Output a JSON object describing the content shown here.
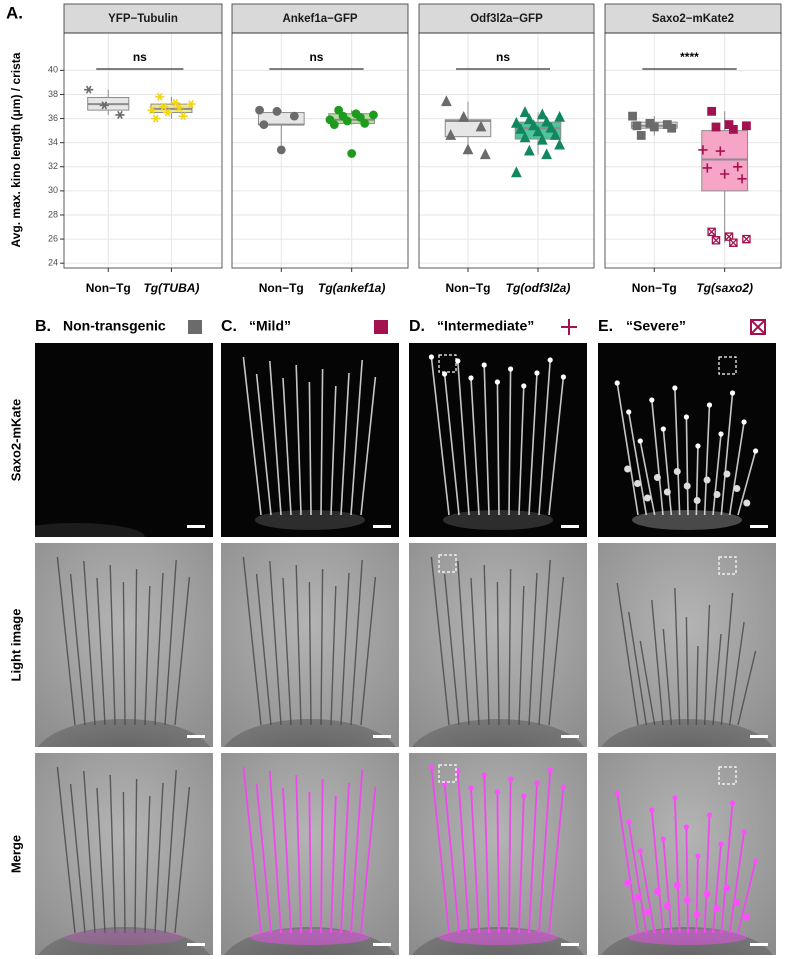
{
  "chart_data": {
    "type": "box",
    "panel_label": "A.",
    "ylabel": "Avg. max. kino length (μm) / crista",
    "ylim": [
      23.6,
      43.1
    ],
    "yticks": [
      24,
      26,
      28,
      30,
      32,
      34,
      36,
      38,
      40
    ],
    "grid": true,
    "facets": [
      {
        "title": "YFP−Tubulin",
        "significance": "ns",
        "groups": [
          {
            "label": "Non−Tg",
            "italic": false,
            "color": "#6b6b6b",
            "fill": "#e6e6e6",
            "median": 37.2,
            "q1": 36.7,
            "q3": 37.75,
            "whisker_low": 36.3,
            "whisker_high": 38.4,
            "marker": "asterisk",
            "points": [
              38.4,
              37.1,
              36.3
            ]
          },
          {
            "label": "Tg(TUBA)",
            "italic": true,
            "color": "#f2d513",
            "fill": "#f1e79a",
            "median": 36.8,
            "q1": 36.5,
            "q3": 37.2,
            "whisker_low": 36.0,
            "whisker_high": 37.8,
            "marker": "asterisk",
            "points": [
              37.8,
              37.3,
              37.2,
              37.0,
              36.9,
              36.7,
              36.5,
              36.2,
              36.0
            ]
          }
        ]
      },
      {
        "title": "Ankef1a−GFP",
        "significance": "ns",
        "groups": [
          {
            "label": "Non−Tg",
            "italic": false,
            "color": "#6b6b6b",
            "fill": "#e6e6e6",
            "median": 35.5,
            "q1": 35.5,
            "q3": 36.5,
            "whisker_low": 33.4,
            "whisker_high": 36.7,
            "marker": "circle",
            "points": [
              36.7,
              36.6,
              36.2,
              35.5,
              33.4
            ]
          },
          {
            "label": "Tg(ankef1a)",
            "italic": true,
            "color": "#1e9a1e",
            "fill": "#b5e09c",
            "median": 35.9,
            "q1": 35.6,
            "q3": 36.4,
            "whisker_low": 35.5,
            "whisker_high": 36.7,
            "marker": "circle",
            "points": [
              36.7,
              36.4,
              36.3,
              36.2,
              36.1,
              35.9,
              35.8,
              35.6,
              35.5,
              33.1
            ]
          }
        ]
      },
      {
        "title": "Odf3l2a−GFP",
        "significance": "ns",
        "groups": [
          {
            "label": "Non−Tg",
            "italic": false,
            "color": "#6b6b6b",
            "fill": "#e6e6e6",
            "median": 35.8,
            "q1": 34.5,
            "q3": 35.9,
            "whisker_low": 33.0,
            "whisker_high": 37.4,
            "marker": "triangle",
            "points": [
              37.4,
              36.1,
              35.3,
              34.6,
              33.4,
              33.0
            ]
          },
          {
            "label": "Tg(odf3l2a)",
            "italic": true,
            "color": "#12875f",
            "fill": "#4fc39a",
            "median": 35.2,
            "q1": 34.3,
            "q3": 35.7,
            "whisker_low": 33.0,
            "whisker_high": 36.5,
            "marker": "triangle",
            "points": [
              36.5,
              36.3,
              36.1,
              35.9,
              35.7,
              35.6,
              35.4,
              35.2,
              35.1,
              34.9,
              34.6,
              34.4,
              34.2,
              33.8,
              33.3,
              33.0,
              31.5
            ]
          }
        ]
      },
      {
        "title": "Saxo2−mKate2",
        "significance": "****",
        "groups": [
          {
            "label": "Non−Tg",
            "italic": false,
            "color": "#6b6b6b",
            "fill": "#e6e6e6",
            "median": 35.4,
            "q1": 35.2,
            "q3": 35.7,
            "whisker_low": 34.6,
            "whisker_high": 36.2,
            "marker": "square",
            "points": [
              36.2,
              35.6,
              35.5,
              35.4,
              35.3,
              35.2,
              34.6
            ]
          },
          {
            "label": "Tg(saxo2)",
            "italic": true,
            "color": "#a3124f",
            "fill": "#f6a5c6",
            "median": 32.6,
            "q1": 30.0,
            "q3": 35.0,
            "whisker_low": 25.7,
            "whisker_high": 36.6,
            "marker": "square",
            "points": [
              36.6,
              35.5,
              35.4,
              35.3,
              35.1,
              33.4,
              33.3,
              32.0,
              31.9,
              31.4,
              31.0,
              26.6,
              26.2,
              26.0,
              25.9,
              25.7
            ],
            "markers": [
              "square",
              "square",
              "square",
              "square",
              "square",
              "plus",
              "plus",
              "plus",
              "plus",
              "plus",
              "plus",
              "boxx",
              "boxx",
              "boxx",
              "boxx",
              "boxx"
            ]
          }
        ]
      }
    ]
  },
  "panels": [
    {
      "label": "B.",
      "title": "Non-transgenic",
      "icon": "square",
      "icon_color": "#6b6b6b"
    },
    {
      "label": "C.",
      "title": "“Mild”",
      "icon": "square",
      "icon_color": "#a3124f"
    },
    {
      "label": "D.",
      "title": "“Intermediate”",
      "icon": "plus",
      "icon_color": "#a3124f"
    },
    {
      "label": "E.",
      "title": "“Severe”",
      "icon": "boxx",
      "icon_color": "#a3124f"
    }
  ],
  "row_labels": [
    "Saxo2-mKate",
    "Light image",
    "Merge"
  ]
}
